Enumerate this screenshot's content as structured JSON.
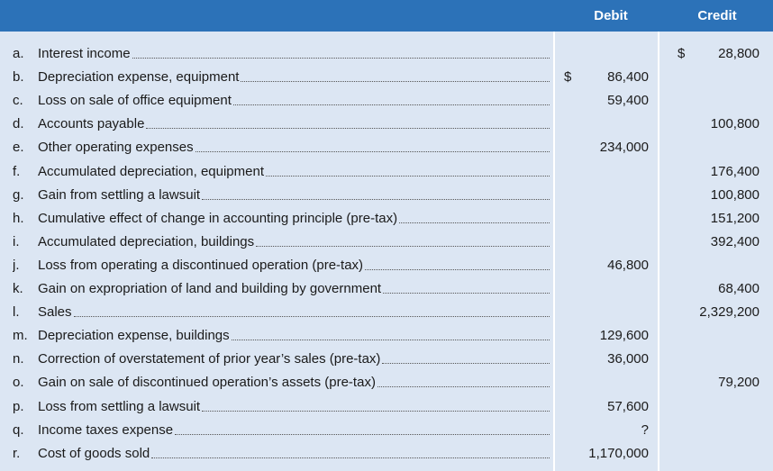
{
  "header": {
    "debit": "Debit",
    "credit": "Credit"
  },
  "rows": [
    {
      "letter": "a.",
      "label": "Interest income",
      "debit_symbol": "",
      "debit": "",
      "credit_symbol": "$",
      "credit": "28,800"
    },
    {
      "letter": "b.",
      "label": "Depreciation expense, equipment",
      "debit_symbol": "$",
      "debit": "86,400",
      "credit_symbol": "",
      "credit": ""
    },
    {
      "letter": "c.",
      "label": "Loss on sale of office equipment",
      "debit_symbol": "",
      "debit": "59,400",
      "credit_symbol": "",
      "credit": ""
    },
    {
      "letter": "d.",
      "label": "Accounts payable",
      "debit_symbol": "",
      "debit": "",
      "credit_symbol": "",
      "credit": "100,800"
    },
    {
      "letter": "e.",
      "label": "Other operating expenses",
      "debit_symbol": "",
      "debit": "234,000",
      "credit_symbol": "",
      "credit": ""
    },
    {
      "letter": "f.",
      "label": "Accumulated depreciation, equipment",
      "debit_symbol": "",
      "debit": "",
      "credit_symbol": "",
      "credit": "176,400"
    },
    {
      "letter": "g.",
      "label": "Gain from settling a lawsuit",
      "debit_symbol": "",
      "debit": "",
      "credit_symbol": "",
      "credit": "100,800"
    },
    {
      "letter": "h.",
      "label": "Cumulative effect of change in accounting principle (pre-tax)",
      "debit_symbol": "",
      "debit": "",
      "credit_symbol": "",
      "credit": "151,200"
    },
    {
      "letter": "i.",
      "label": "Accumulated depreciation, buildings",
      "debit_symbol": "",
      "debit": "",
      "credit_symbol": "",
      "credit": "392,400"
    },
    {
      "letter": "j.",
      "label": "Loss from operating a discontinued operation (pre-tax)",
      "debit_symbol": "",
      "debit": "46,800",
      "credit_symbol": "",
      "credit": ""
    },
    {
      "letter": "k.",
      "label": "Gain on expropriation of land and building by government",
      "debit_symbol": "",
      "debit": "",
      "credit_symbol": "",
      "credit": "68,400"
    },
    {
      "letter": "l.",
      "label": "Sales",
      "debit_symbol": "",
      "debit": "",
      "credit_symbol": "",
      "credit": "2,329,200"
    },
    {
      "letter": "m.",
      "label": "Depreciation expense, buildings",
      "debit_symbol": "",
      "debit": "129,600",
      "credit_symbol": "",
      "credit": ""
    },
    {
      "letter": "n.",
      "label": "Correction of overstatement of prior year’s sales (pre-tax)",
      "debit_symbol": "",
      "debit": "36,000",
      "credit_symbol": "",
      "credit": ""
    },
    {
      "letter": "o.",
      "label": "Gain on sale of discontinued operation’s assets (pre-tax)",
      "debit_symbol": "",
      "debit": "",
      "credit_symbol": "",
      "credit": "79,200"
    },
    {
      "letter": "p.",
      "label": "Loss from settling a lawsuit",
      "debit_symbol": "",
      "debit": "57,600",
      "credit_symbol": "",
      "credit": ""
    },
    {
      "letter": "q.",
      "label": "Income taxes expense",
      "debit_symbol": "",
      "debit": "?",
      "credit_symbol": "",
      "credit": ""
    },
    {
      "letter": "r.",
      "label": "Cost of goods sold",
      "debit_symbol": "",
      "debit": "1,170,000",
      "credit_symbol": "",
      "credit": ""
    }
  ]
}
